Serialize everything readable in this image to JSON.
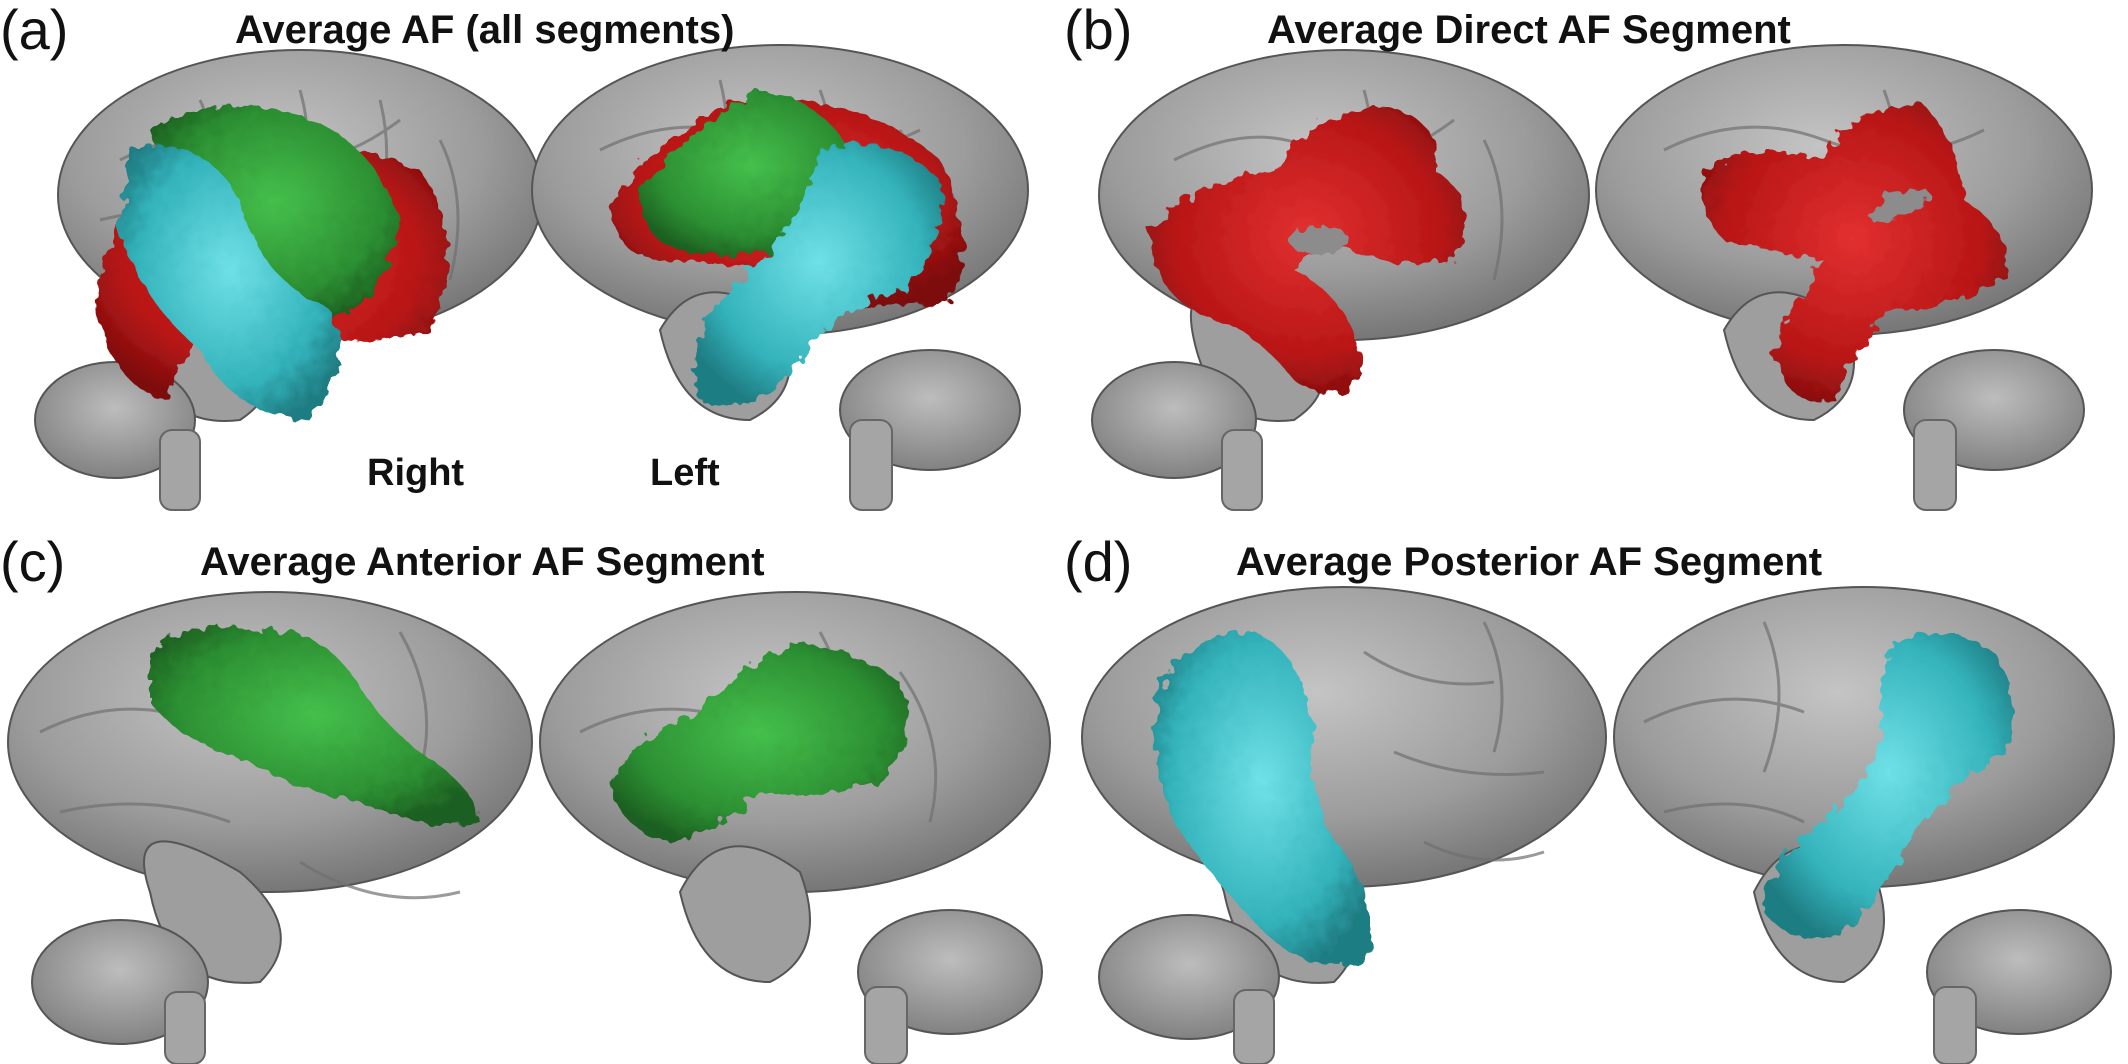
{
  "panels": [
    {
      "letter": "(a)",
      "title": "Average AF (all segments)"
    },
    {
      "letter": "(b)",
      "title": "Average Direct AF Segment"
    },
    {
      "letter": "(c)",
      "title": "Average Anterior AF Segment"
    },
    {
      "letter": "(d)",
      "title": "Average Posterior AF Segment"
    }
  ],
  "hemispheres": {
    "right": "Right",
    "left": "Left"
  },
  "colors": {
    "brain": "#9a9a9a",
    "brain_dark": "#5e5e5e",
    "direct_segment": "#c41a1a",
    "anterior_segment": "#2e9b35",
    "posterior_segment": "#33b8c0"
  }
}
